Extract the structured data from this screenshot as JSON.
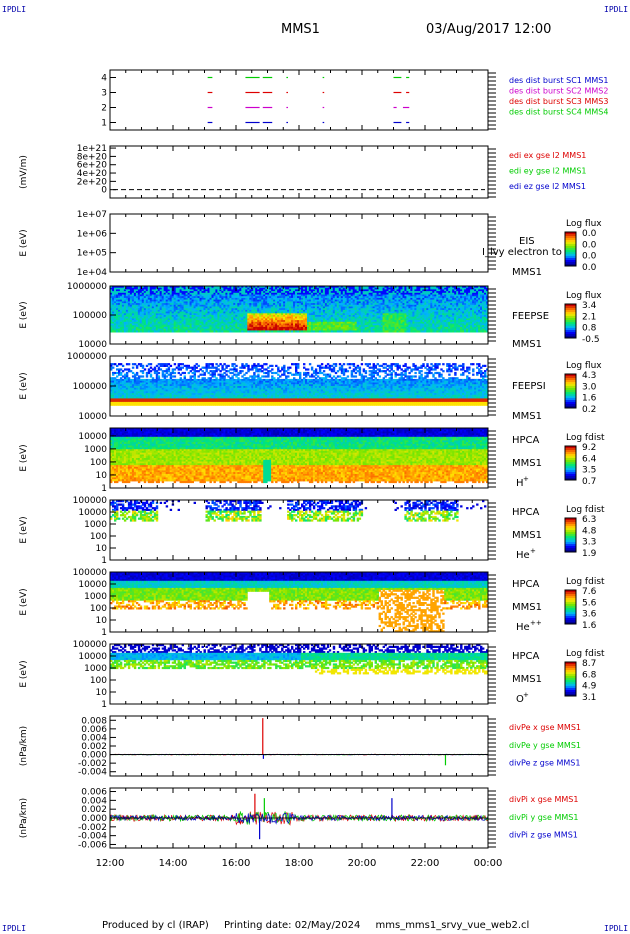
{
  "header": {
    "corner_left_top": "IPDLI",
    "corner_right_top": "IPDLI",
    "corner_left_bottom": "IPDLI",
    "corner_right_bottom": "IPDLI",
    "spacecraft": "MMS1",
    "datetime": "03/Aug/2017 12:00"
  },
  "footer": {
    "produced_by": "Produced by cl (IRAP)",
    "printing_date": "Printing date: 02/May/2024",
    "script": "mms_mms1_srvy_vue_web2.cl"
  },
  "colors": {
    "burst1": "#00cc00",
    "burst2": "#cc00cc",
    "burst3": "#dd0000",
    "burst4": "#0000cc",
    "x_comp": "#dd0000",
    "y_comp": "#00cc00",
    "z_comp": "#0000cc"
  },
  "time_axis": {
    "ticks": [
      "12:00",
      "14:00",
      "16:00",
      "18:00",
      "20:00",
      "22:00",
      "00:00"
    ]
  },
  "chart_data": [
    {
      "type": "line",
      "id": "burst",
      "ylim": [
        0.5,
        4.5
      ],
      "yticks": [
        "1",
        "2",
        "3",
        "4"
      ],
      "legend": [
        {
          "label": "des dist burst SC1 MMS1",
          "color": "#0000cc"
        },
        {
          "label": "des dist burst SC2 MMS2",
          "color": "#cc00cc"
        },
        {
          "label": "des dist burst SC3 MMS3",
          "color": "#dd0000"
        },
        {
          "label": "des dist burst SC4 MMS4",
          "color": "#00cc00"
        }
      ],
      "series": [
        {
          "level": 4,
          "color": "#00cc00",
          "segments": [
            [
              15.1,
              15.25
            ],
            [
              16.3,
              16.75
            ],
            [
              16.85,
              17.15
            ],
            [
              17.6,
              17.65
            ],
            [
              18.75,
              18.8
            ],
            [
              21.0,
              21.25
            ],
            [
              21.4,
              21.5
            ]
          ]
        },
        {
          "level": 3,
          "color": "#dd0000",
          "segments": [
            [
              15.1,
              15.25
            ],
            [
              16.3,
              16.75
            ],
            [
              16.85,
              17.15
            ],
            [
              17.6,
              17.65
            ],
            [
              18.75,
              18.8
            ],
            [
              21.0,
              21.25
            ],
            [
              21.4,
              21.5
            ]
          ]
        },
        {
          "level": 2,
          "color": "#cc00cc",
          "segments": [
            [
              15.1,
              15.25
            ],
            [
              16.3,
              16.75
            ],
            [
              16.85,
              17.15
            ],
            [
              17.6,
              17.65
            ],
            [
              18.75,
              18.8
            ],
            [
              21.0,
              21.1
            ],
            [
              21.3,
              21.5
            ]
          ]
        },
        {
          "level": 1,
          "color": "#0000cc",
          "segments": [
            [
              15.1,
              15.25
            ],
            [
              16.3,
              16.75
            ],
            [
              16.85,
              17.15
            ],
            [
              17.6,
              17.65
            ],
            [
              18.75,
              18.8
            ],
            [
              21.0,
              21.25
            ],
            [
              21.4,
              21.5
            ]
          ]
        }
      ]
    },
    {
      "type": "line",
      "id": "edi",
      "ylabel": "(mV/m)",
      "ylim": [
        -2e+20,
        1.05e+21
      ],
      "yticks": [
        "1e+21",
        "8e+20",
        "6e+20",
        "4e+20",
        "2e+20",
        "0"
      ],
      "ytick_values": [
        1e+21,
        8e+20,
        6e+20,
        4e+20,
        2e+20,
        0
      ],
      "legend": [
        {
          "label": "edi ex gse l2 MMS1",
          "color": "#dd0000"
        },
        {
          "label": "edi ey gse l2 MMS1",
          "color": "#00cc00"
        },
        {
          "label": "edi ez gse l2 MMS1",
          "color": "#0000cc"
        }
      ],
      "series": [
        {
          "name": "zero",
          "style": "dashed",
          "y": 0
        }
      ]
    },
    {
      "type": "heatmap",
      "id": "eis",
      "ylabel": "E (eV)",
      "ylim": [
        10000,
        10000000
      ],
      "log": true,
      "yticks": [
        "1e+07",
        "1e+06",
        "1e+05",
        "1e+04"
      ],
      "ytick_values": [
        10000000.0,
        1000000.0,
        100000.0,
        10000.0
      ],
      "instrument": [
        "EIS",
        "MMS1"
      ],
      "overlay_text": "I_lvy electron to",
      "colorbar_title": "Log flux",
      "colorbar_ticks": [
        "0.0",
        "0.0",
        "0.0",
        "0.0"
      ],
      "empty": true
    },
    {
      "type": "heatmap",
      "id": "feepse",
      "ylabel": "E (eV)",
      "ylim": [
        10000,
        1000000
      ],
      "log": true,
      "yticks": [
        "1000000",
        "100000",
        "10000"
      ],
      "ytick_values": [
        1000000.0,
        100000.0,
        10000.0
      ],
      "instrument": [
        "FEEPSE",
        "MMS1"
      ],
      "colorbar_title": "Log flux",
      "colorbar_ticks": [
        "3.4",
        "2.1",
        "0.8",
        "-0.5"
      ],
      "spectrum": "feepse"
    },
    {
      "type": "heatmap",
      "id": "feepsi",
      "ylabel": "E (eV)",
      "ylim": [
        10000,
        1000000
      ],
      "log": true,
      "yticks": [
        "1000000",
        "100000",
        "10000"
      ],
      "ytick_values": [
        1000000.0,
        100000.0,
        10000.0
      ],
      "instrument": [
        "FEEPSI",
        "MMS1"
      ],
      "colorbar_title": "Log flux",
      "colorbar_ticks": [
        "4.3",
        "3.0",
        "1.6",
        "0.2"
      ],
      "spectrum": "feepsi"
    },
    {
      "type": "heatmap",
      "id": "hpca_h",
      "ylabel": "E (eV)",
      "ylim": [
        1,
        40000
      ],
      "log": true,
      "yticks": [
        "10000",
        "1000",
        "100",
        "10",
        "1"
      ],
      "ytick_values": [
        10000,
        1000,
        100,
        10,
        1
      ],
      "instrument": [
        "HPCA",
        "MMS1"
      ],
      "species": "H",
      "species_sup": "+",
      "colorbar_title": "Log fdist",
      "colorbar_ticks": [
        "9.2",
        "6.4",
        "3.5",
        "0.7"
      ],
      "spectrum": "hpca_h"
    },
    {
      "type": "heatmap",
      "id": "hpca_he",
      "ylabel": "E (eV)",
      "ylim": [
        1,
        100000
      ],
      "log": true,
      "yticks": [
        "100000",
        "10000",
        "1000",
        "100",
        "10",
        "1"
      ],
      "ytick_values": [
        100000,
        10000,
        1000,
        100,
        10,
        1
      ],
      "instrument": [
        "HPCA",
        "MMS1"
      ],
      "species": "He",
      "species_sup": "+",
      "colorbar_title": "Log fdist",
      "colorbar_ticks": [
        "6.3",
        "4.8",
        "3.3",
        "1.9"
      ],
      "spectrum": "hpca_he"
    },
    {
      "type": "heatmap",
      "id": "hpca_he2",
      "ylabel": "E (eV)",
      "ylim": [
        1,
        100000
      ],
      "log": true,
      "yticks": [
        "100000",
        "10000",
        "1000",
        "100",
        "10",
        "1"
      ],
      "ytick_values": [
        100000,
        10000,
        1000,
        100,
        10,
        1
      ],
      "instrument": [
        "HPCA",
        "MMS1"
      ],
      "species": "He",
      "species_sup": "++",
      "colorbar_title": "Log fdist",
      "colorbar_ticks": [
        "7.6",
        "5.6",
        "3.6",
        "1.6"
      ],
      "spectrum": "hpca_he2"
    },
    {
      "type": "heatmap",
      "id": "hpca_o",
      "ylabel": "E (eV)",
      "ylim": [
        1,
        100000
      ],
      "log": true,
      "yticks": [
        "100000",
        "10000",
        "1000",
        "100",
        "10",
        "1"
      ],
      "ytick_values": [
        100000,
        10000,
        1000,
        100,
        10,
        1
      ],
      "instrument": [
        "HPCA",
        "MMS1"
      ],
      "species": "O",
      "species_sup": "+",
      "colorbar_title": "Log fdist",
      "colorbar_ticks": [
        "8.7",
        "6.8",
        "4.9",
        "3.1"
      ],
      "spectrum": "hpca_o"
    },
    {
      "type": "line",
      "id": "divpe",
      "ylabel": "(nPa/km)",
      "ylim": [
        -0.005,
        0.009
      ],
      "yticks": [
        "0.008",
        "0.006",
        "0.004",
        "0.002",
        "0.000",
        "-0.002",
        "-0.004"
      ],
      "ytick_values": [
        0.008,
        0.006,
        0.004,
        0.002,
        0.0,
        -0.002,
        -0.004
      ],
      "legend": [
        {
          "label": "divPe x gse MMS1",
          "color": "#dd0000"
        },
        {
          "label": "divPe y gse MMS1",
          "color": "#00cc00"
        },
        {
          "label": "divPe z gse MMS1",
          "color": "#0000cc"
        }
      ],
      "spikes": [
        {
          "x": 16.85,
          "y": 0.0085,
          "color": "#dd0000"
        },
        {
          "x": 16.87,
          "y": -0.001,
          "color": "#0000cc"
        },
        {
          "x": 22.65,
          "y": -0.0025,
          "color": "#00cc00"
        }
      ],
      "noise": 0.0001
    },
    {
      "type": "line",
      "id": "divpi",
      "ylabel": "(nPa/km)",
      "ylim": [
        -0.0068,
        0.0068
      ],
      "yticks": [
        "0.006",
        "0.004",
        "0.002",
        "0.000",
        "-0.002",
        "-0.004",
        "-0.006"
      ],
      "ytick_values": [
        0.006,
        0.004,
        0.002,
        0.0,
        -0.002,
        -0.004,
        -0.006
      ],
      "legend": [
        {
          "label": "divPi x gse MMS1",
          "color": "#dd0000"
        },
        {
          "label": "divPi y gse MMS1",
          "color": "#00cc00"
        },
        {
          "label": "divPi z gse MMS1",
          "color": "#0000cc"
        }
      ],
      "noise": 0.0007,
      "active_interval": [
        16.0,
        18.0
      ],
      "spikes": [
        {
          "x": 16.6,
          "y": 0.0055,
          "color": "#dd0000"
        },
        {
          "x": 16.75,
          "y": -0.0048,
          "color": "#0000cc"
        },
        {
          "x": 16.9,
          "y": 0.0045,
          "color": "#00cc00"
        },
        {
          "x": 20.95,
          "y": 0.0045,
          "color": "#0000cc"
        }
      ]
    }
  ]
}
